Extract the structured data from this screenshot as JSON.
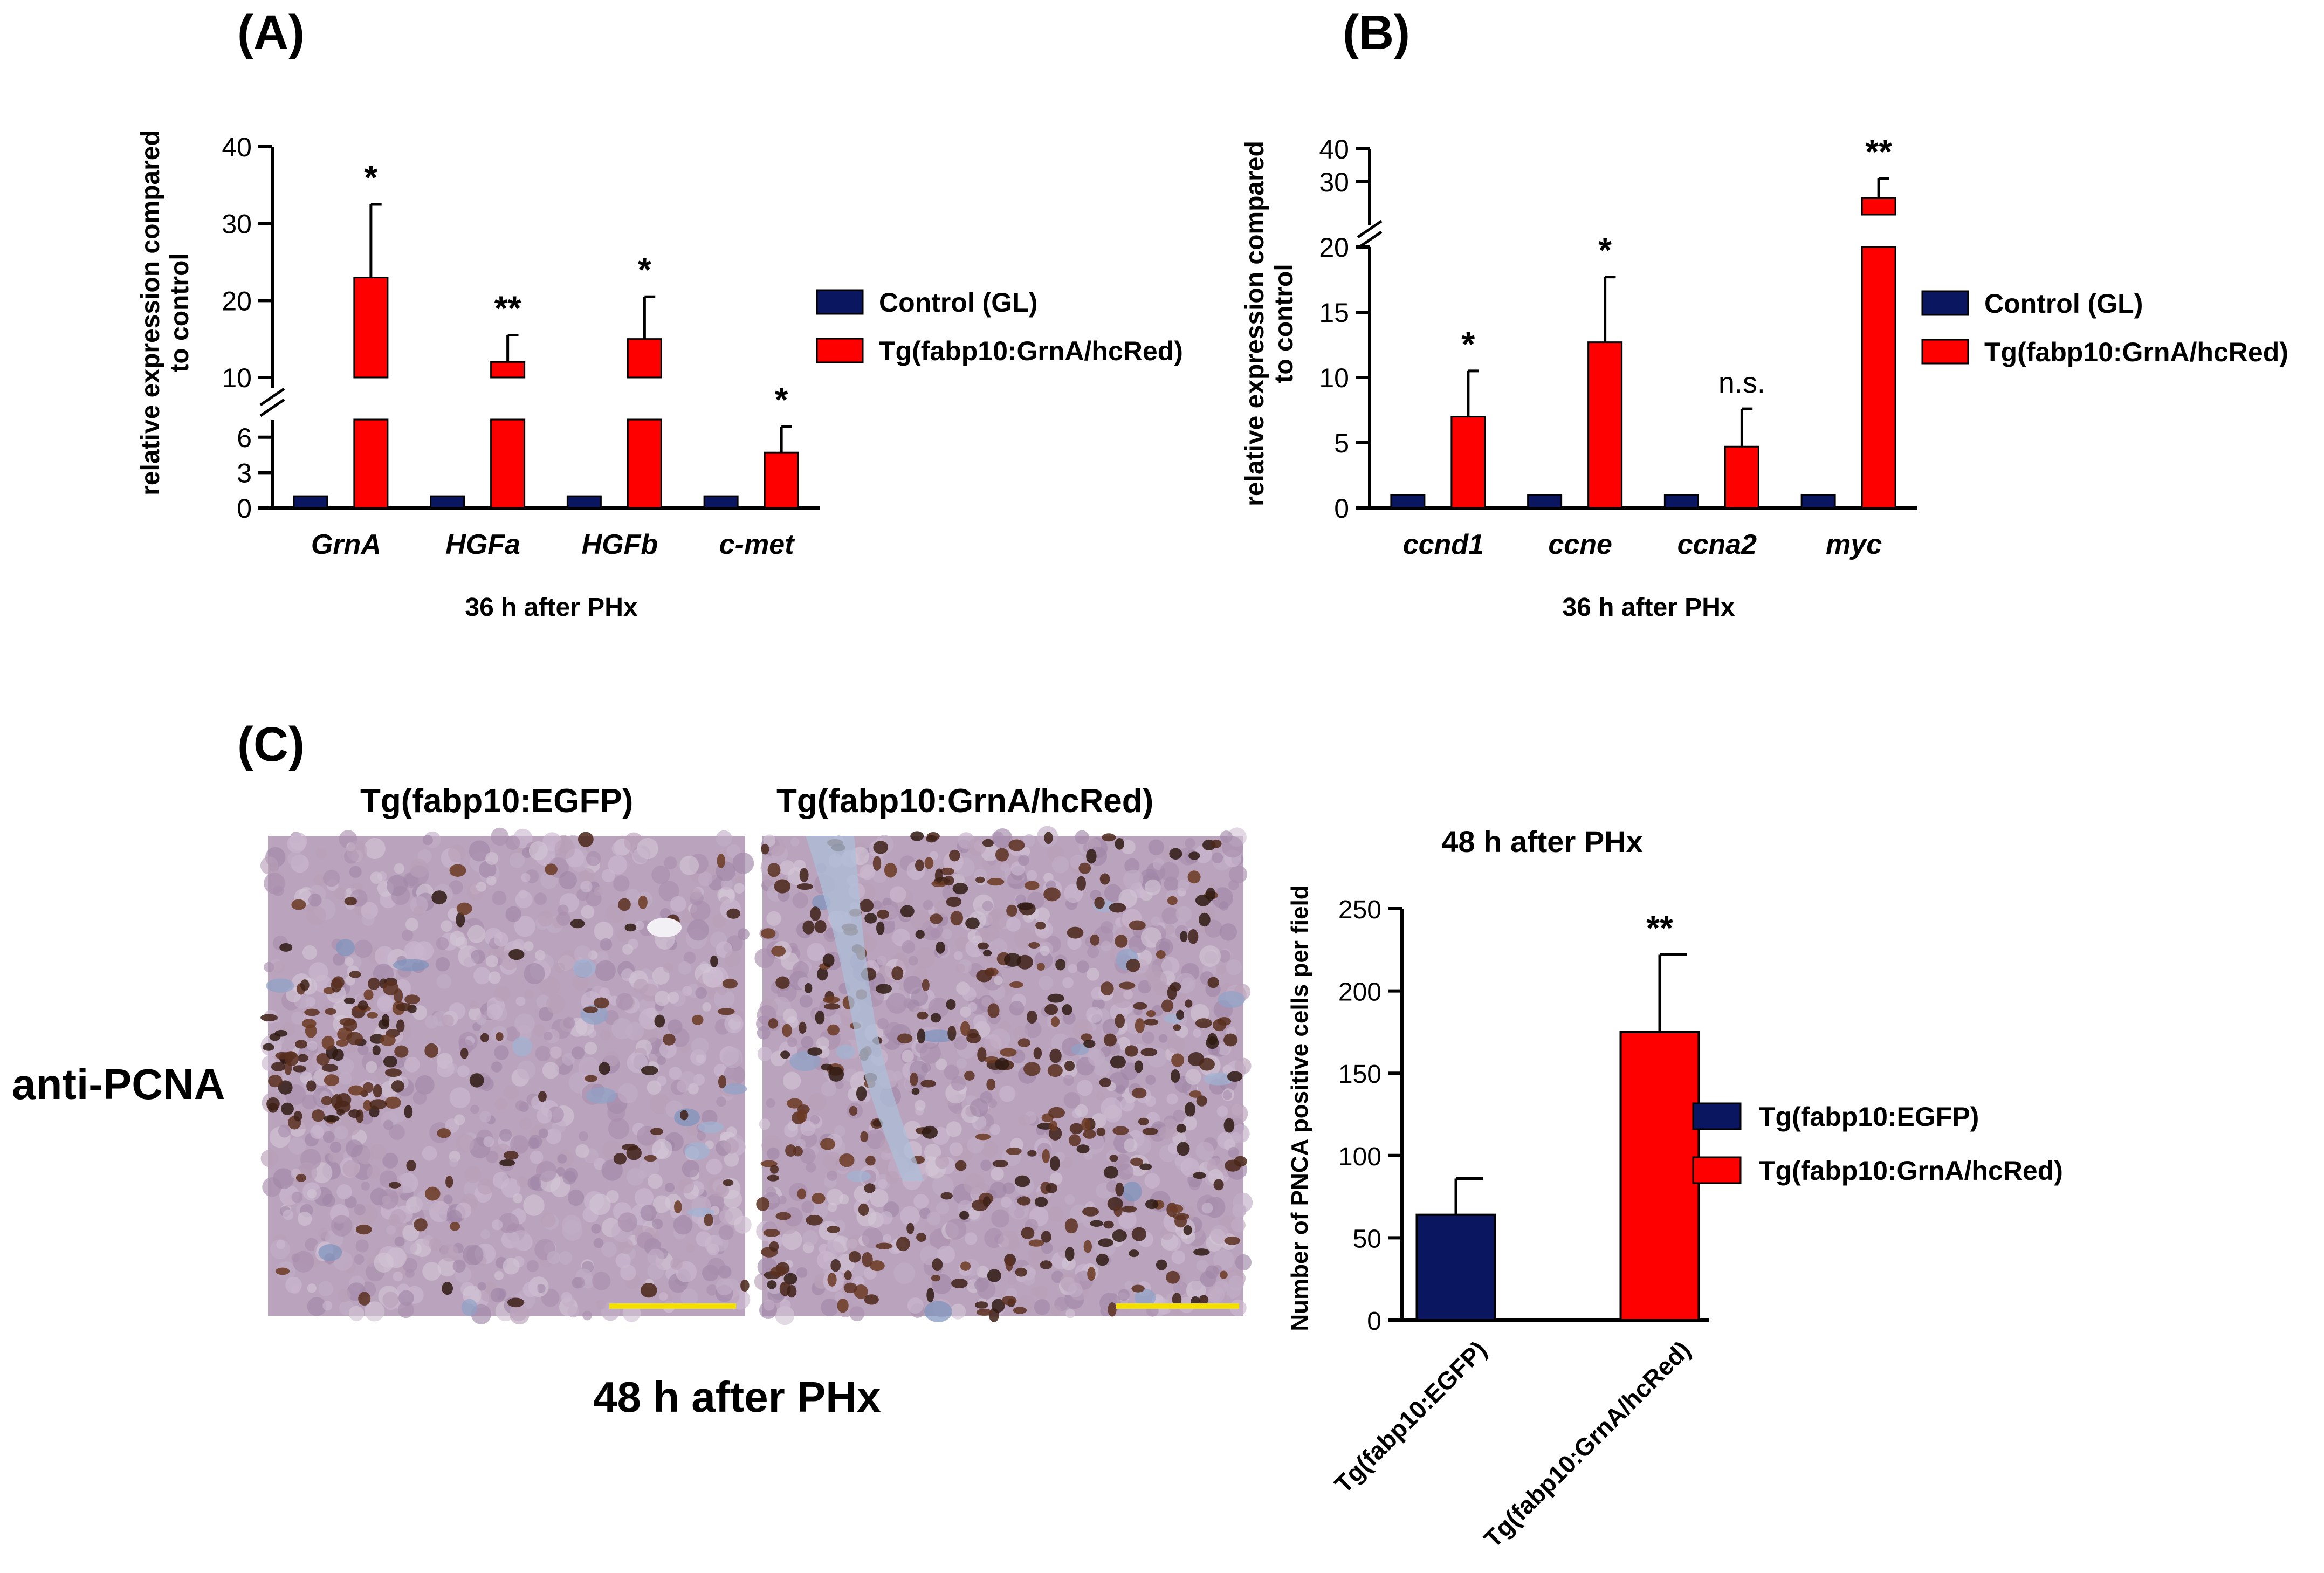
{
  "panels": {
    "a": {
      "label": "(A)"
    },
    "b": {
      "label": "(B)"
    },
    "c": {
      "label": "(C)",
      "micro_left_title": "Tg(fabp10:EGFP)",
      "micro_right_title": "Tg(fabp10:GrnA/hcRed)",
      "side_label": "anti-PCNA",
      "bottom_label": "48 h after PHx"
    }
  },
  "colors": {
    "control": "#0b1660",
    "treated": "#ff0000",
    "left_title": "#162a6b",
    "right_title": "#ee1111",
    "scalebar": "#f4e000"
  },
  "chart_data": [
    {
      "id": "A",
      "type": "bar",
      "categories": [
        "GrnA",
        "HGFa",
        "HGFb",
        "c-met"
      ],
      "series": [
        {
          "name": "Control (GL)",
          "values": [
            1,
            1,
            1,
            1
          ],
          "errors": [
            0,
            0,
            0,
            0
          ]
        },
        {
          "name": "Tg(fabp10:GrnA/hcRed)",
          "values": [
            23,
            12,
            15,
            4.7
          ],
          "errors": [
            9.5,
            3.5,
            5.5,
            2.2
          ]
        }
      ],
      "significance": [
        "*",
        "**",
        "*",
        "*"
      ],
      "xlabel": "36 h after PHx",
      "ylabel": [
        "relative expression compared",
        "to control"
      ],
      "y_broken": true,
      "y_lower_range": [
        0,
        7.5
      ],
      "y_upper_range": [
        10,
        40
      ],
      "y_lower_ticks": [
        "0",
        "3",
        "6"
      ],
      "y_upper_ticks": [
        "10",
        "20",
        "30",
        "40"
      ],
      "legend_position": "right"
    },
    {
      "id": "B",
      "type": "bar",
      "categories": [
        "ccnd1",
        "ccne",
        "ccna2",
        "myc"
      ],
      "series": [
        {
          "name": "Control (GL)",
          "values": [
            1,
            1,
            1,
            1
          ],
          "errors": [
            0,
            0,
            0,
            0
          ]
        },
        {
          "name": "Tg(fabp10:GrnA/hcRed)",
          "values": [
            7,
            12.7,
            4.7,
            25
          ],
          "errors": [
            3.5,
            5,
            2.9,
            6
          ]
        }
      ],
      "significance": [
        "*",
        "*",
        "n.s.",
        "**"
      ],
      "xlabel": "36 h after PHx",
      "ylabel": [
        "relative expression compared",
        "to control"
      ],
      "y_broken": true,
      "y_lower_range": [
        0,
        20
      ],
      "y_upper_range": [
        20,
        40
      ],
      "y_lower_ticks": [
        "0",
        "5",
        "10",
        "15",
        "20"
      ],
      "y_upper_ticks": [
        "20",
        "30",
        "40"
      ],
      "legend_position": "right"
    },
    {
      "id": "C",
      "type": "bar",
      "title": "48 h after PHx",
      "categories": [
        "Tg(fabp10:EGFP)",
        "Tg(fabp10:GrnA/hcRed)"
      ],
      "values": [
        64,
        175
      ],
      "errors": [
        22,
        47
      ],
      "significance": [
        "",
        "**"
      ],
      "ylabel": "Number of PNCA positive cells per field",
      "ylim": [
        0,
        250
      ],
      "y_ticks": [
        "0",
        "50",
        "100",
        "150",
        "200",
        "250"
      ],
      "legend": [
        "Tg(fabp10:EGFP)",
        "Tg(fabp10:GrnA/hcRed)"
      ],
      "legend_position": "right"
    }
  ]
}
